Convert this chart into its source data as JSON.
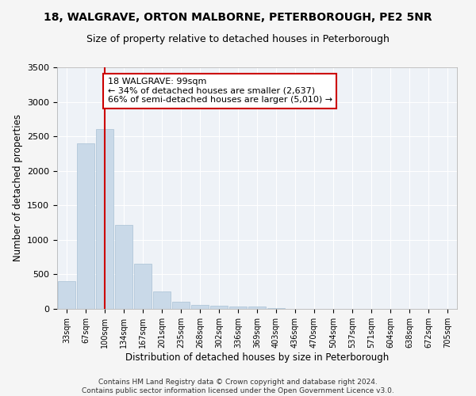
{
  "title1": "18, WALGRAVE, ORTON MALBORNE, PETERBOROUGH, PE2 5NR",
  "title2": "Size of property relative to detached houses in Peterborough",
  "xlabel": "Distribution of detached houses by size in Peterborough",
  "ylabel": "Number of detached properties",
  "categories": [
    "33sqm",
    "67sqm",
    "100sqm",
    "134sqm",
    "167sqm",
    "201sqm",
    "235sqm",
    "268sqm",
    "302sqm",
    "336sqm",
    "369sqm",
    "403sqm",
    "436sqm",
    "470sqm",
    "504sqm",
    "537sqm",
    "571sqm",
    "604sqm",
    "638sqm",
    "672sqm",
    "705sqm"
  ],
  "values": [
    400,
    2400,
    2600,
    1220,
    650,
    250,
    100,
    60,
    50,
    40,
    30,
    10,
    5,
    3,
    2,
    2,
    1,
    1,
    1,
    1,
    1
  ],
  "bar_color": "#c9d9e8",
  "bar_edgecolor": "#a8c0d4",
  "vline_x": 2,
  "vline_color": "#cc0000",
  "annotation_text": "18 WALGRAVE: 99sqm\n← 34% of detached houses are smaller (2,637)\n66% of semi-detached houses are larger (5,010) →",
  "annotation_box_color": "#ffffff",
  "annotation_box_edgecolor": "#cc0000",
  "ylim": [
    0,
    3500
  ],
  "yticks": [
    0,
    500,
    1000,
    1500,
    2000,
    2500,
    3000,
    3500
  ],
  "footer": "Contains HM Land Registry data © Crown copyright and database right 2024.\nContains public sector information licensed under the Open Government Licence v3.0.",
  "bg_color": "#eef2f7",
  "grid_color": "#ffffff",
  "title1_fontsize": 10,
  "title2_fontsize": 9,
  "xlabel_fontsize": 8.5,
  "ylabel_fontsize": 8.5,
  "annotation_fontsize": 8,
  "footer_fontsize": 6.5
}
